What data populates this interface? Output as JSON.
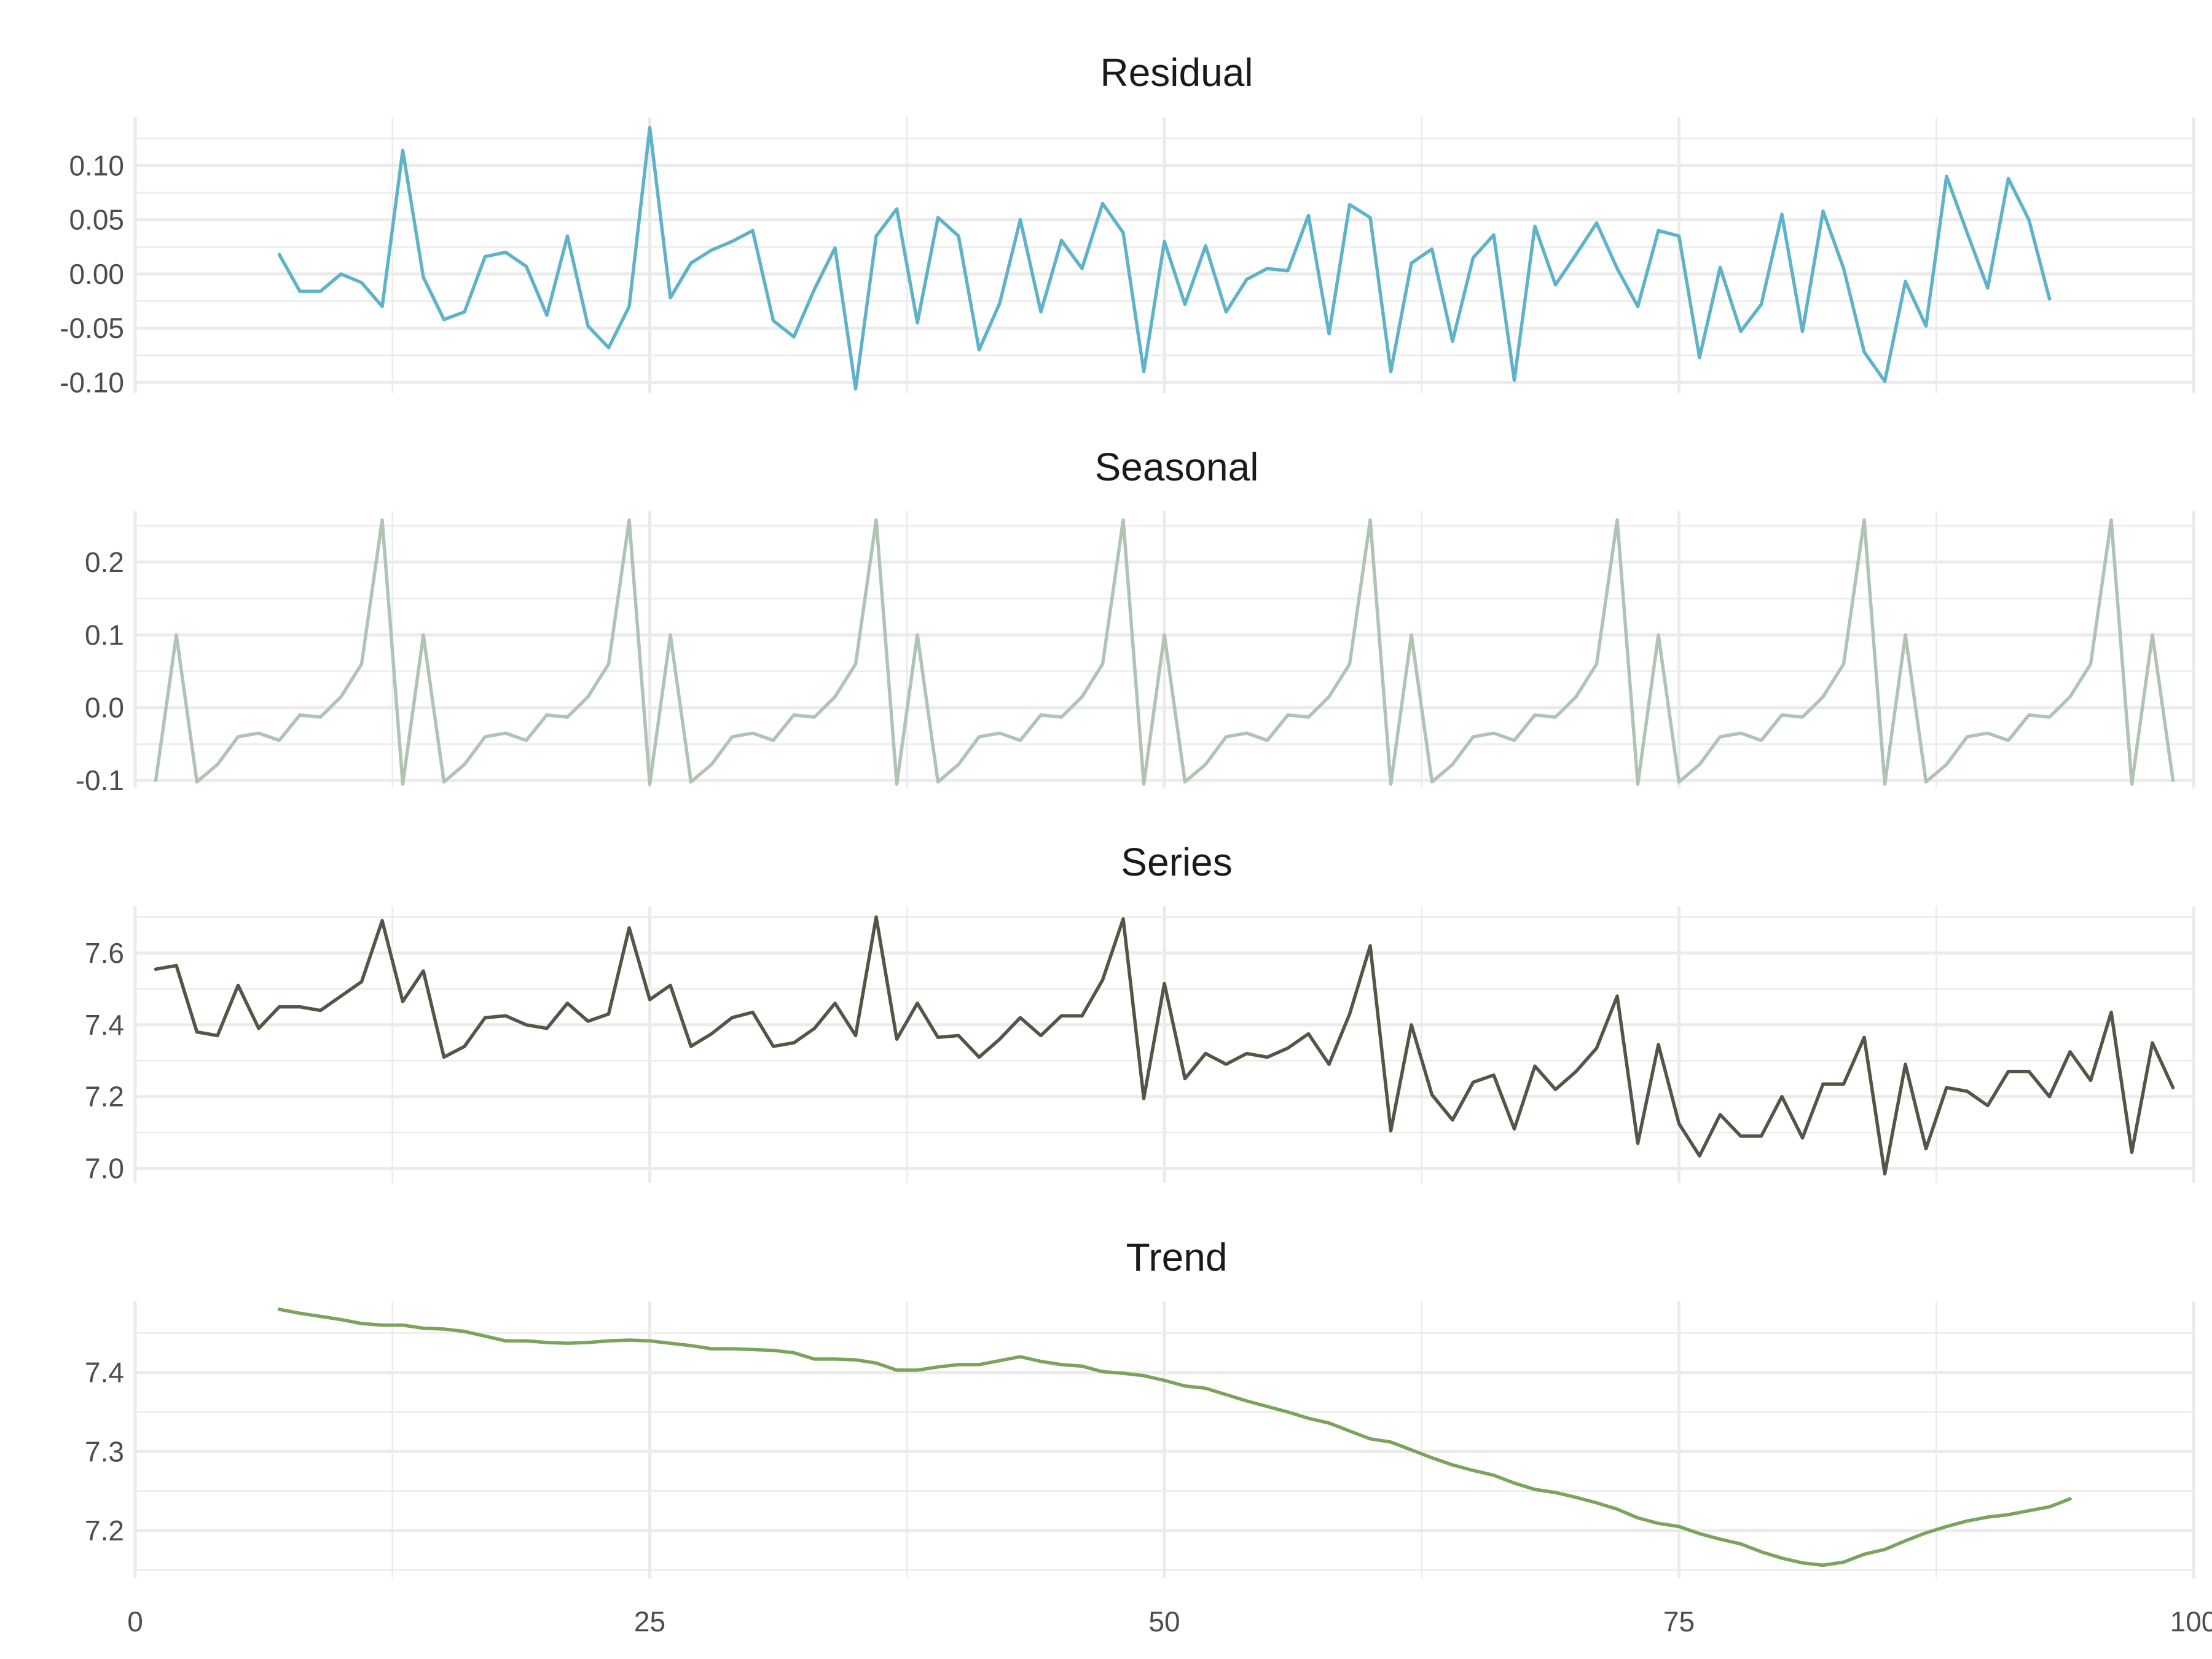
{
  "chart_data": [
    {
      "type": "line",
      "title": "Residual",
      "color": "#5fb3c9",
      "xlim": [
        0,
        100
      ],
      "ylim": [
        -0.11,
        0.145
      ],
      "yticks": [
        -0.1,
        -0.05,
        0.0,
        0.05,
        0.1
      ],
      "ytick_labels": [
        "-0.10",
        "-0.05",
        "0.00",
        "0.05",
        "0.10"
      ],
      "x_start": 7,
      "values": [
        0.018,
        -0.016,
        -0.016,
        0.0,
        -0.008,
        -0.03,
        0.114,
        -0.003,
        -0.042,
        -0.035,
        0.016,
        0.02,
        0.007,
        -0.038,
        0.035,
        -0.048,
        -0.068,
        -0.03,
        0.135,
        -0.022,
        0.01,
        0.022,
        0.03,
        0.04,
        -0.043,
        -0.058,
        -0.014,
        0.024,
        -0.106,
        0.035,
        0.06,
        -0.045,
        0.052,
        0.035,
        -0.07,
        -0.027,
        0.05,
        -0.035,
        0.031,
        0.005,
        0.065,
        0.038,
        -0.09,
        0.03,
        -0.028,
        0.026,
        -0.035,
        -0.005,
        0.005,
        0.003,
        0.054,
        -0.055,
        0.064,
        0.052,
        -0.09,
        0.01,
        0.023,
        -0.062,
        0.015,
        0.036,
        -0.098,
        0.044,
        -0.01,
        0.018,
        0.047,
        0.005,
        -0.03,
        0.04,
        0.035,
        -0.077,
        0.006,
        -0.053,
        -0.028,
        0.055,
        -0.053,
        0.058,
        0.005,
        -0.072,
        -0.099,
        -0.007,
        -0.048,
        0.09,
        0.038,
        -0.013,
        0.088,
        0.05,
        -0.023
      ]
    },
    {
      "type": "line",
      "title": "Seasonal",
      "color": "#afc4b4",
      "xlim": [
        0,
        100
      ],
      "ylim": [
        -0.11,
        0.27
      ],
      "yticks": [
        -0.1,
        0.0,
        0.1,
        0.2
      ],
      "ytick_labels": [
        "-0.1",
        "0.0",
        "0.1",
        "0.2"
      ],
      "x_start": 1,
      "values": [
        -0.1,
        0.1,
        -0.102,
        -0.078,
        -0.04,
        -0.035,
        -0.045,
        -0.01,
        -0.013,
        0.015,
        0.06,
        0.258,
        -0.105,
        0.1,
        -0.102,
        -0.078,
        -0.04,
        -0.035,
        -0.045,
        -0.01,
        -0.013,
        0.015,
        0.06,
        0.258,
        -0.105,
        0.1,
        -0.102,
        -0.078,
        -0.04,
        -0.035,
        -0.045,
        -0.01,
        -0.013,
        0.015,
        0.06,
        0.258,
        -0.105,
        0.1,
        -0.102,
        -0.078,
        -0.04,
        -0.035,
        -0.045,
        -0.01,
        -0.013,
        0.015,
        0.06,
        0.258,
        -0.105,
        0.1,
        -0.102,
        -0.078,
        -0.04,
        -0.035,
        -0.045,
        -0.01,
        -0.013,
        0.015,
        0.06,
        0.258,
        -0.105,
        0.1,
        -0.102,
        -0.078,
        -0.04,
        -0.035,
        -0.045,
        -0.01,
        -0.013,
        0.015,
        0.06,
        0.258,
        -0.105,
        0.1,
        -0.102,
        -0.078,
        -0.04,
        -0.035,
        -0.045,
        -0.01,
        -0.013,
        0.015,
        0.06,
        0.258,
        -0.105,
        0.1,
        -0.102,
        -0.078,
        -0.04,
        -0.035,
        -0.045,
        -0.01,
        -0.013,
        0.015,
        0.06,
        0.258,
        -0.105,
        0.1,
        -0.1
      ]
    },
    {
      "type": "line",
      "title": "Series",
      "color": "#555547",
      "xlim": [
        0,
        100
      ],
      "ylim": [
        6.96,
        7.73
      ],
      "yticks": [
        7.0,
        7.2,
        7.4,
        7.6
      ],
      "ytick_labels": [
        "7.0",
        "7.2",
        "7.4",
        "7.6"
      ],
      "x_start": 1,
      "values": [
        7.555,
        7.565,
        7.38,
        7.37,
        7.51,
        7.39,
        7.45,
        7.45,
        7.44,
        7.48,
        7.52,
        7.69,
        7.465,
        7.55,
        7.31,
        7.34,
        7.42,
        7.425,
        7.4,
        7.39,
        7.46,
        7.41,
        7.43,
        7.67,
        7.47,
        7.51,
        7.34,
        7.375,
        7.42,
        7.435,
        7.34,
        7.35,
        7.39,
        7.46,
        7.37,
        7.7,
        7.36,
        7.46,
        7.365,
        7.37,
        7.31,
        7.36,
        7.42,
        7.37,
        7.425,
        7.425,
        7.525,
        7.695,
        7.195,
        7.515,
        7.25,
        7.32,
        7.29,
        7.32,
        7.31,
        7.335,
        7.375,
        7.29,
        7.43,
        7.62,
        7.105,
        7.4,
        7.205,
        7.135,
        7.24,
        7.26,
        7.11,
        7.285,
        7.22,
        7.27,
        7.335,
        7.48,
        7.07,
        7.345,
        7.125,
        7.035,
        7.15,
        7.09,
        7.09,
        7.2,
        7.085,
        7.235,
        7.235,
        7.365,
        6.985,
        7.29,
        7.055,
        7.225,
        7.215,
        7.175,
        7.27,
        7.27,
        7.2,
        7.325,
        7.245,
        7.435,
        7.045,
        7.35,
        7.225
      ]
    },
    {
      "type": "line",
      "title": "Trend",
      "color": "#7aa35b",
      "xlim": [
        0,
        100
      ],
      "ylim": [
        7.14,
        7.49
      ],
      "yticks": [
        7.2,
        7.3,
        7.4
      ],
      "ytick_labels": [
        "7.2",
        "7.3",
        "7.4"
      ],
      "x_start": 7,
      "values": [
        7.48,
        7.475,
        7.471,
        7.467,
        7.462,
        7.46,
        7.46,
        7.456,
        7.455,
        7.452,
        7.446,
        7.44,
        7.44,
        7.438,
        7.437,
        7.438,
        7.44,
        7.441,
        7.44,
        7.437,
        7.434,
        7.43,
        7.43,
        7.429,
        7.428,
        7.425,
        7.417,
        7.417,
        7.416,
        7.412,
        7.403,
        7.403,
        7.407,
        7.41,
        7.41,
        7.415,
        7.42,
        7.414,
        7.41,
        7.408,
        7.401,
        7.399,
        7.396,
        7.39,
        7.383,
        7.38,
        7.372,
        7.364,
        7.357,
        7.35,
        7.342,
        7.336,
        7.326,
        7.316,
        7.312,
        7.302,
        7.292,
        7.283,
        7.276,
        7.27,
        7.26,
        7.252,
        7.248,
        7.242,
        7.235,
        7.227,
        7.216,
        7.209,
        7.205,
        7.196,
        7.189,
        7.183,
        7.173,
        7.165,
        7.159,
        7.156,
        7.16,
        7.17,
        7.176,
        7.187,
        7.197,
        7.205,
        7.212,
        7.217,
        7.22,
        7.225,
        7.23,
        7.24
      ]
    }
  ],
  "x_axis": {
    "ticks": [
      0,
      25,
      50,
      75,
      100
    ],
    "tick_labels": [
      "0",
      "25",
      "50",
      "75",
      "100"
    ]
  }
}
